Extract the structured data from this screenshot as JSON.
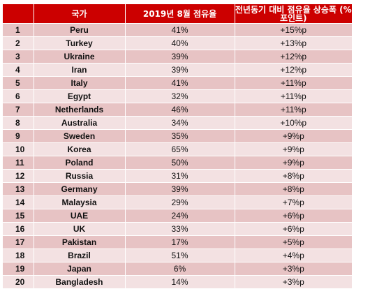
{
  "table": {
    "headers": {
      "rank": "",
      "country": "국가",
      "share": "2019년 8월 점유율",
      "change": "전년동기 대비 점유율 상승폭 (% 포인트)"
    },
    "rows": [
      {
        "rank": "1",
        "country": "Peru",
        "share": "41%",
        "change": "+15%p"
      },
      {
        "rank": "2",
        "country": "Turkey",
        "share": "40%",
        "change": "+13%p"
      },
      {
        "rank": "3",
        "country": "Ukraine",
        "share": "39%",
        "change": "+12%p"
      },
      {
        "rank": "4",
        "country": "Iran",
        "share": "39%",
        "change": "+12%p"
      },
      {
        "rank": "5",
        "country": "Italy",
        "share": "41%",
        "change": "+11%p"
      },
      {
        "rank": "6",
        "country": "Egypt",
        "share": "32%",
        "change": "+11%p"
      },
      {
        "rank": "7",
        "country": "Netherlands",
        "share": "46%",
        "change": "+11%p"
      },
      {
        "rank": "8",
        "country": "Australia",
        "share": "34%",
        "change": "+10%p"
      },
      {
        "rank": "9",
        "country": "Sweden",
        "share": "35%",
        "change": "+9%p"
      },
      {
        "rank": "10",
        "country": "Korea",
        "share": "65%",
        "change": "+9%p"
      },
      {
        "rank": "11",
        "country": "Poland",
        "share": "50%",
        "change": "+9%p"
      },
      {
        "rank": "12",
        "country": "Russia",
        "share": "31%",
        "change": "+8%p"
      },
      {
        "rank": "13",
        "country": "Germany",
        "share": "39%",
        "change": "+8%p"
      },
      {
        "rank": "14",
        "country": "Malaysia",
        "share": "29%",
        "change": "+7%p"
      },
      {
        "rank": "15",
        "country": "UAE",
        "share": "24%",
        "change": "+6%p"
      },
      {
        "rank": "16",
        "country": "UK",
        "share": "33%",
        "change": "+6%p"
      },
      {
        "rank": "17",
        "country": "Pakistan",
        "share": "17%",
        "change": "+5%p"
      },
      {
        "rank": "18",
        "country": "Brazil",
        "share": "51%",
        "change": "+4%p"
      },
      {
        "rank": "19",
        "country": "Japan",
        "share": "6%",
        "change": "+3%p"
      },
      {
        "rank": "20",
        "country": "Bangladesh",
        "share": "14%",
        "change": "+3%p"
      }
    ]
  },
  "colors": {
    "header_bg": "#cc0000",
    "header_text": "#ffffff",
    "row_odd": "#e7c3c4",
    "row_even": "#f3e1e2"
  }
}
